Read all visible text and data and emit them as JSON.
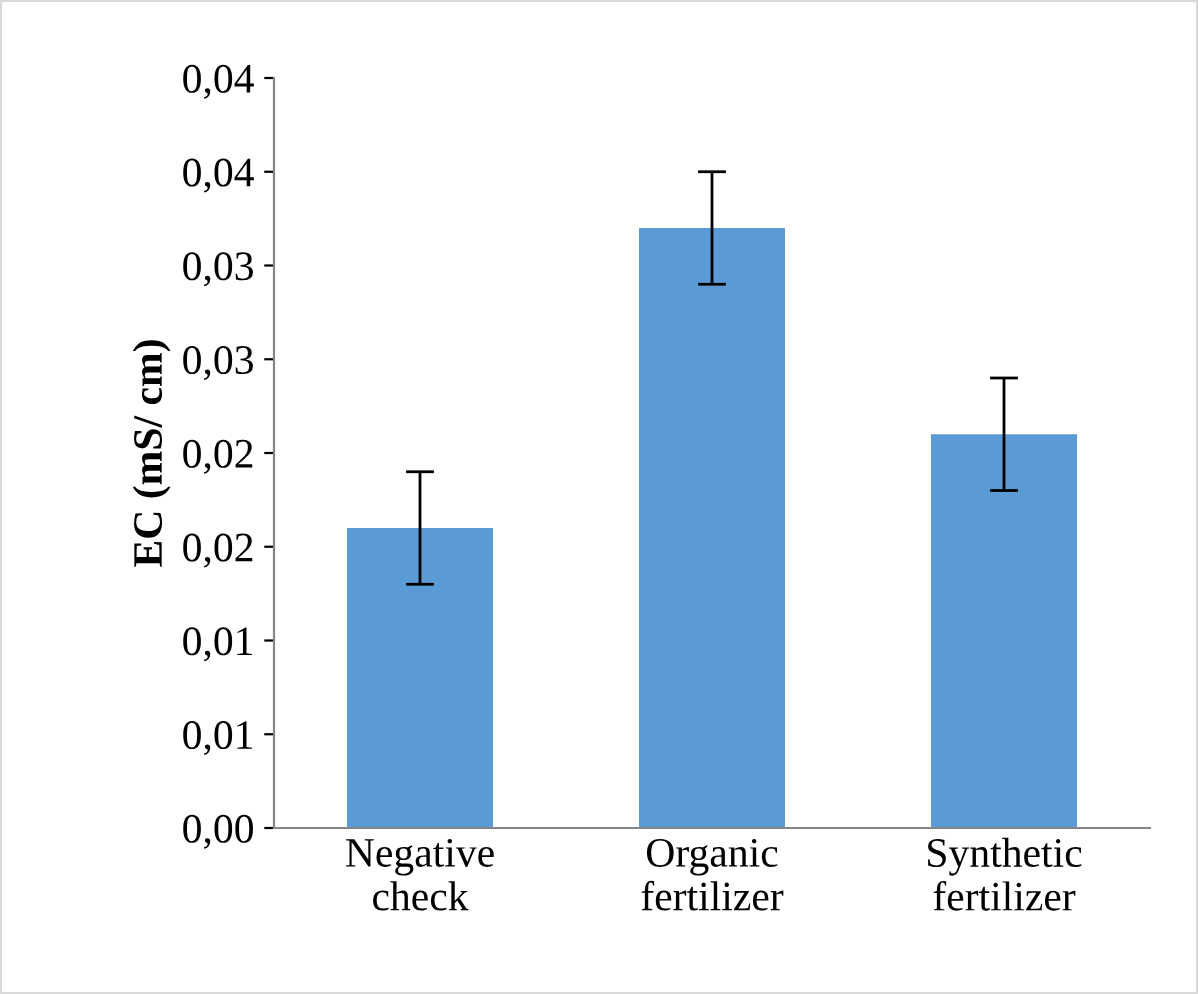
{
  "chart_data": {
    "type": "bar",
    "ylabel": "EC (mS/ cm)",
    "categories": [
      "Negative\ncheck",
      "Organic\nfertilizer",
      "Synthetic\nfertilizer"
    ],
    "values": [
      0.016,
      0.032,
      0.021
    ],
    "errors": [
      0.003,
      0.003,
      0.003
    ],
    "color": "#5b9bd5",
    "ylim": [
      0,
      0.04
    ],
    "yticks": [
      {
        "value": 0,
        "label": "0,00"
      },
      {
        "value": 0.005,
        "label": "0,01"
      },
      {
        "value": 0.01,
        "label": "0,01"
      },
      {
        "value": 0.015,
        "label": "0,02"
      },
      {
        "value": 0.02,
        "label": "0,02"
      },
      {
        "value": 0.025,
        "label": "0,03"
      },
      {
        "value": 0.03,
        "label": "0,03"
      },
      {
        "value": 0.035,
        "label": "0,04"
      },
      {
        "value": 0.04,
        "label": "0,04"
      }
    ]
  }
}
